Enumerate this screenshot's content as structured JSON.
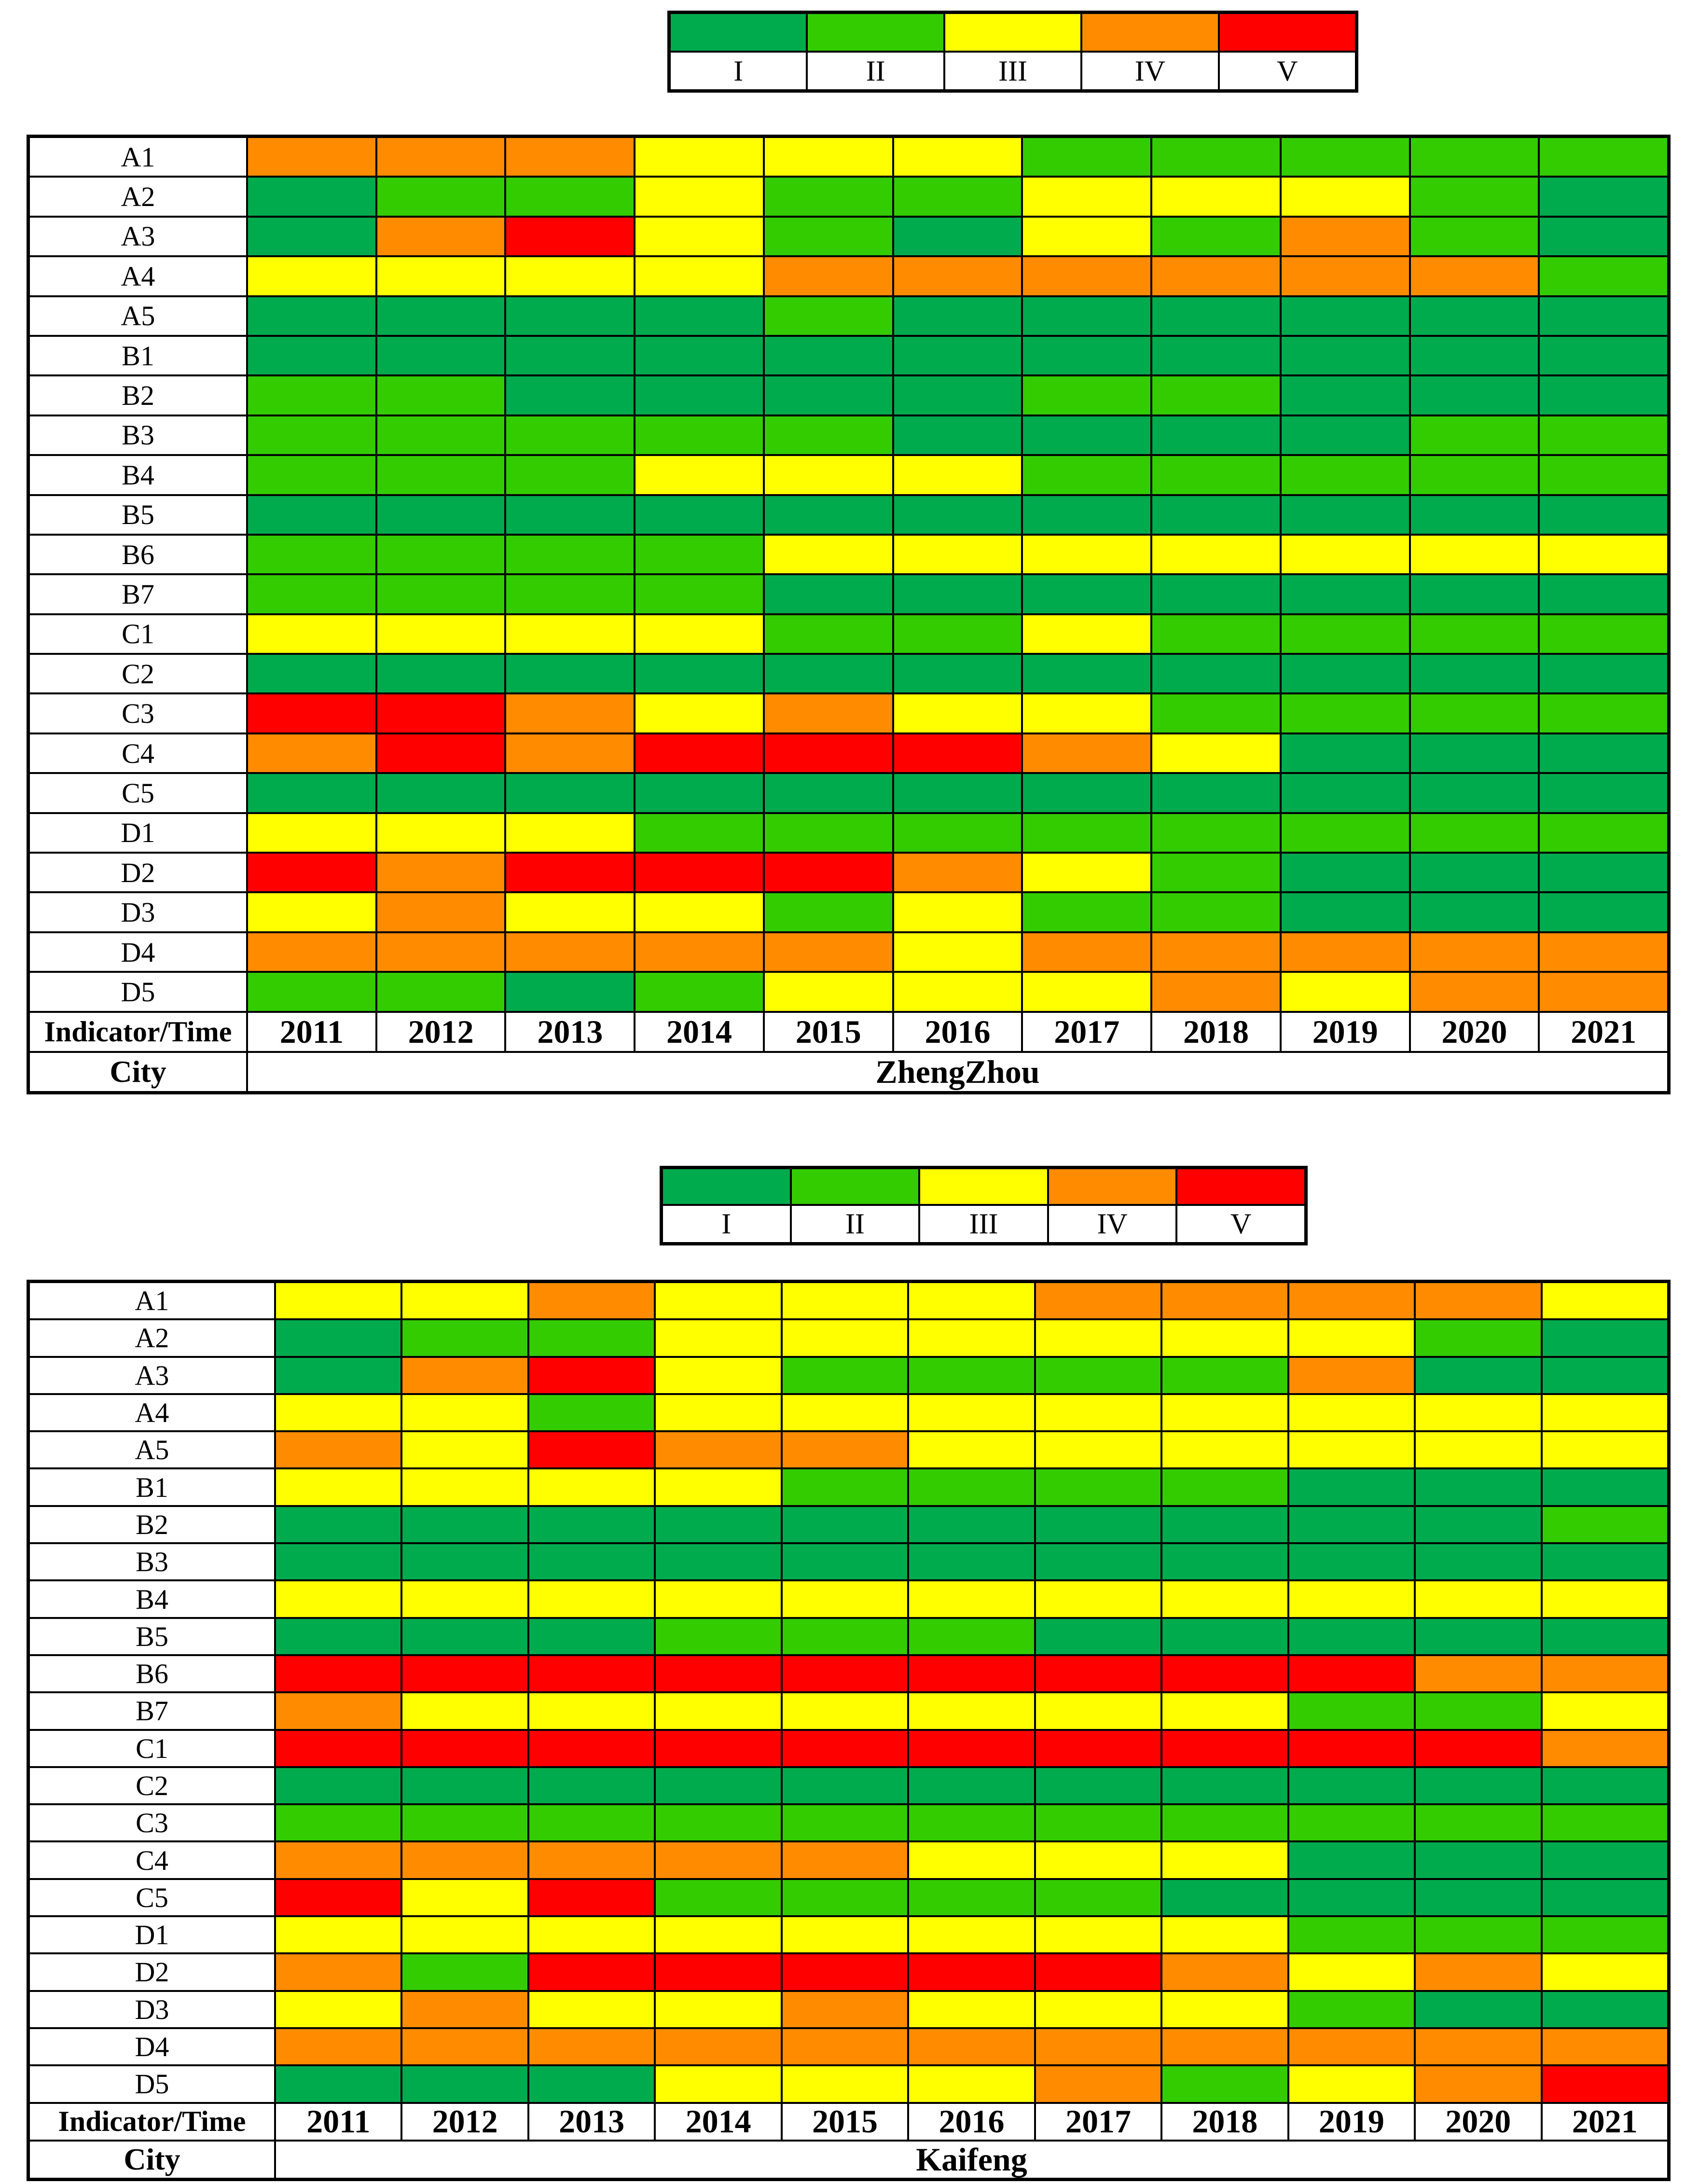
{
  "legend": {
    "labels": [
      "I",
      "II",
      "III",
      "IV",
      "V"
    ],
    "colors": [
      "#00AB4E",
      "#33CC00",
      "#FFFF00",
      "#FF8C00",
      "#FF0000"
    ]
  },
  "level_colors": {
    "1": "#00AB4E",
    "2": "#33CC00",
    "3": "#FFFF00",
    "4": "#FF8C00",
    "5": "#FF0000"
  },
  "chart_data": [
    {
      "type": "heatmap",
      "city": "ZhengZhou",
      "corner_label": "Indicator/Time",
      "city_label": "City",
      "legend_labels": [
        "I",
        "II",
        "III",
        "IV",
        "V"
      ],
      "legend_position": "top-center",
      "grid": true,
      "x": [
        "2011",
        "2012",
        "2013",
        "2014",
        "2015",
        "2016",
        "2017",
        "2018",
        "2019",
        "2020",
        "2021"
      ],
      "y": [
        "A1",
        "A2",
        "A3",
        "A4",
        "A5",
        "B1",
        "B2",
        "B3",
        "B4",
        "B5",
        "B6",
        "B7",
        "C1",
        "C2",
        "C3",
        "C4",
        "C5",
        "D1",
        "D2",
        "D3",
        "D4",
        "D5"
      ],
      "values": [
        [
          4,
          4,
          4,
          3,
          3,
          3,
          2,
          2,
          2,
          2,
          2
        ],
        [
          1,
          2,
          2,
          3,
          2,
          2,
          3,
          3,
          3,
          2,
          1
        ],
        [
          1,
          4,
          5,
          3,
          2,
          1,
          3,
          2,
          4,
          2,
          1
        ],
        [
          3,
          3,
          3,
          3,
          4,
          4,
          4,
          4,
          4,
          4,
          2
        ],
        [
          1,
          1,
          1,
          1,
          2,
          1,
          1,
          1,
          1,
          1,
          1
        ],
        [
          1,
          1,
          1,
          1,
          1,
          1,
          1,
          1,
          1,
          1,
          1
        ],
        [
          2,
          2,
          1,
          1,
          1,
          1,
          2,
          2,
          1,
          1,
          1
        ],
        [
          2,
          2,
          2,
          2,
          2,
          1,
          1,
          1,
          1,
          2,
          2
        ],
        [
          2,
          2,
          2,
          3,
          3,
          3,
          2,
          2,
          2,
          2,
          2
        ],
        [
          1,
          1,
          1,
          1,
          1,
          1,
          1,
          1,
          1,
          1,
          1
        ],
        [
          2,
          2,
          2,
          2,
          3,
          3,
          3,
          3,
          3,
          3,
          3
        ],
        [
          2,
          2,
          2,
          2,
          1,
          1,
          1,
          1,
          1,
          1,
          1
        ],
        [
          3,
          3,
          3,
          3,
          2,
          2,
          3,
          2,
          2,
          2,
          2
        ],
        [
          1,
          1,
          1,
          1,
          1,
          1,
          1,
          1,
          1,
          1,
          1
        ],
        [
          5,
          5,
          4,
          3,
          4,
          3,
          3,
          2,
          2,
          2,
          2
        ],
        [
          4,
          5,
          4,
          5,
          5,
          5,
          4,
          3,
          1,
          1,
          1
        ],
        [
          1,
          1,
          1,
          1,
          1,
          1,
          1,
          1,
          1,
          1,
          1
        ],
        [
          3,
          3,
          3,
          2,
          2,
          2,
          2,
          2,
          2,
          2,
          2
        ],
        [
          5,
          4,
          5,
          5,
          5,
          4,
          3,
          2,
          1,
          1,
          1
        ],
        [
          3,
          4,
          3,
          3,
          2,
          3,
          2,
          2,
          1,
          1,
          1
        ],
        [
          4,
          4,
          4,
          4,
          4,
          3,
          4,
          4,
          4,
          4,
          4
        ],
        [
          2,
          2,
          1,
          2,
          3,
          3,
          3,
          4,
          3,
          4,
          4
        ]
      ]
    },
    {
      "type": "heatmap",
      "city": "Kaifeng",
      "corner_label": "Indicator/Time",
      "city_label": "City",
      "legend_labels": [
        "I",
        "II",
        "III",
        "IV",
        "V"
      ],
      "legend_position": "top-center",
      "grid": true,
      "x": [
        "2011",
        "2012",
        "2013",
        "2014",
        "2015",
        "2016",
        "2017",
        "2018",
        "2019",
        "2020",
        "2021"
      ],
      "y": [
        "A1",
        "A2",
        "A3",
        "A4",
        "A5",
        "B1",
        "B2",
        "B3",
        "B4",
        "B5",
        "B6",
        "B7",
        "C1",
        "C2",
        "C3",
        "C4",
        "C5",
        "D1",
        "D2",
        "D3",
        "D4",
        "D5"
      ],
      "values": [
        [
          3,
          3,
          4,
          3,
          3,
          3,
          4,
          4,
          4,
          4,
          3
        ],
        [
          1,
          2,
          2,
          3,
          3,
          3,
          3,
          3,
          3,
          2,
          1
        ],
        [
          1,
          4,
          5,
          3,
          2,
          2,
          2,
          2,
          4,
          1,
          1
        ],
        [
          3,
          3,
          2,
          3,
          3,
          3,
          3,
          3,
          3,
          3,
          3
        ],
        [
          4,
          3,
          5,
          4,
          4,
          3,
          3,
          3,
          3,
          3,
          3
        ],
        [
          3,
          3,
          3,
          3,
          2,
          2,
          2,
          2,
          1,
          1,
          1
        ],
        [
          1,
          1,
          1,
          1,
          1,
          1,
          1,
          1,
          1,
          1,
          2
        ],
        [
          1,
          1,
          1,
          1,
          1,
          1,
          1,
          1,
          1,
          1,
          1
        ],
        [
          3,
          3,
          3,
          3,
          3,
          3,
          3,
          3,
          3,
          3,
          3
        ],
        [
          1,
          1,
          1,
          2,
          2,
          2,
          1,
          1,
          1,
          1,
          1
        ],
        [
          5,
          5,
          5,
          5,
          5,
          5,
          5,
          5,
          5,
          4,
          4
        ],
        [
          4,
          3,
          3,
          3,
          3,
          3,
          3,
          3,
          2,
          2,
          3
        ],
        [
          5,
          5,
          5,
          5,
          5,
          5,
          5,
          5,
          5,
          5,
          4
        ],
        [
          1,
          1,
          1,
          1,
          1,
          1,
          1,
          1,
          1,
          1,
          1
        ],
        [
          2,
          2,
          2,
          2,
          2,
          2,
          2,
          2,
          2,
          2,
          2
        ],
        [
          4,
          4,
          4,
          4,
          4,
          3,
          3,
          3,
          1,
          1,
          1
        ],
        [
          5,
          3,
          5,
          2,
          2,
          2,
          2,
          1,
          1,
          1,
          1
        ],
        [
          3,
          3,
          3,
          3,
          3,
          3,
          3,
          3,
          2,
          2,
          2
        ],
        [
          4,
          2,
          5,
          5,
          5,
          5,
          5,
          4,
          3,
          4,
          3
        ],
        [
          3,
          4,
          3,
          3,
          4,
          3,
          3,
          3,
          2,
          1,
          1
        ],
        [
          4,
          4,
          4,
          4,
          4,
          4,
          4,
          4,
          4,
          4,
          4
        ],
        [
          1,
          1,
          1,
          3,
          3,
          3,
          4,
          2,
          3,
          4,
          5
        ]
      ]
    }
  ]
}
